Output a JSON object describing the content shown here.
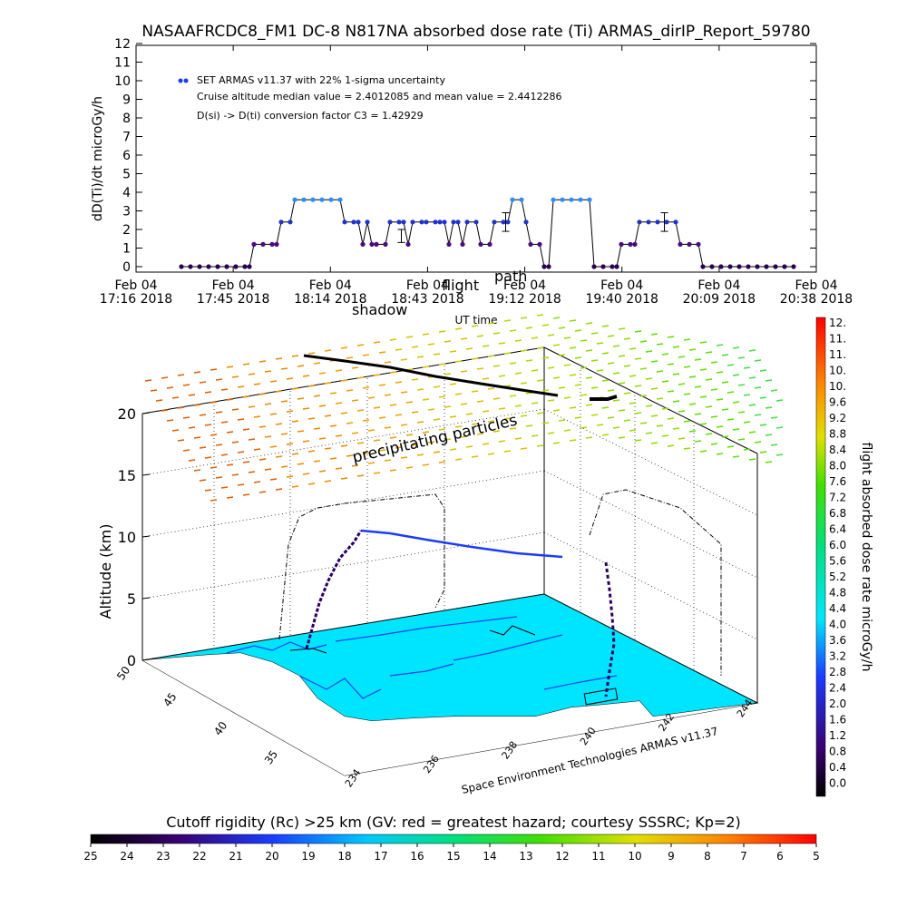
{
  "title": "NASAAFRCDC8_FM1 DC-8   N817NA absorbed dose rate (Ti) ARMAS_dirIP_Report_59780",
  "chart_data": [
    {
      "type": "scatter",
      "ylabel": "dD(Ti)/dt microGy/h",
      "xlabel": "UT time",
      "ylim": [
        0,
        12
      ],
      "yticks": [
        "0",
        "1",
        "2",
        "3",
        "4",
        "5",
        "6",
        "7",
        "8",
        "9",
        "10",
        "11",
        "12"
      ],
      "xticks": [
        {
          "line1": "Feb 04",
          "line2": "17:16  2018"
        },
        {
          "line1": "Feb 04",
          "line2": "17:45  2018"
        },
        {
          "line1": "Feb 04",
          "line2": "18:14  2018"
        },
        {
          "line1": "Feb 04",
          "line2": "18:43  2018"
        },
        {
          "line1": "Feb 04",
          "line2": "19:12  2018"
        },
        {
          "line1": "Feb 04",
          "line2": "19:40  2018"
        },
        {
          "line1": "Feb 04",
          "line2": "20:09  2018"
        },
        {
          "line1": "Feb 04",
          "line2": "20:38  2018"
        }
      ],
      "legend": {
        "entry": "SET ARMAS v11.37 with 22% 1-sigma uncertainty",
        "median_line": "Cruise altitude median value = 2.4012085 and mean value = 2.4412286",
        "conversion_line": "D(si) -> D(ti) conversion factor C3 = 1.42929"
      },
      "annotations": [
        "shadow",
        "flight",
        "path"
      ],
      "points": [
        [
          0.1,
          0
        ],
        [
          0.12,
          0
        ],
        [
          0.14,
          0
        ],
        [
          0.16,
          0
        ],
        [
          0.18,
          0
        ],
        [
          0.2,
          0
        ],
        [
          0.22,
          0
        ],
        [
          0.24,
          0
        ],
        [
          0.25,
          0
        ],
        [
          0.26,
          1.2
        ],
        [
          0.28,
          1.2
        ],
        [
          0.3,
          1.2
        ],
        [
          0.31,
          1.2
        ],
        [
          0.32,
          2.4
        ],
        [
          0.34,
          2.4
        ],
        [
          0.35,
          3.6
        ],
        [
          0.37,
          3.6
        ],
        [
          0.39,
          3.6
        ],
        [
          0.41,
          3.6
        ],
        [
          0.43,
          3.6
        ],
        [
          0.45,
          3.6
        ],
        [
          0.46,
          2.4
        ],
        [
          0.48,
          2.4
        ],
        [
          0.49,
          2.4
        ],
        [
          0.5,
          1.2
        ],
        [
          0.51,
          2.4
        ],
        [
          0.52,
          1.2
        ],
        [
          0.53,
          1.2
        ],
        [
          0.55,
          1.2
        ],
        [
          0.56,
          2.4
        ],
        [
          0.58,
          2.4
        ],
        [
          0.59,
          2.4
        ],
        [
          0.6,
          1.2
        ],
        [
          0.61,
          2.4
        ],
        [
          0.63,
          2.4
        ],
        [
          0.64,
          2.4
        ],
        [
          0.66,
          2.4
        ],
        [
          0.67,
          2.4
        ],
        [
          0.68,
          2.4
        ],
        [
          0.69,
          1.2
        ],
        [
          0.7,
          2.4
        ],
        [
          0.71,
          2.4
        ],
        [
          0.72,
          1.2
        ],
        [
          0.73,
          2.4
        ],
        [
          0.75,
          2.4
        ],
        [
          0.76,
          1.2
        ],
        [
          0.78,
          1.2
        ],
        [
          0.79,
          2.4
        ],
        [
          0.81,
          2.4
        ],
        [
          0.82,
          2.4
        ],
        [
          0.83,
          3.6
        ],
        [
          0.85,
          3.6
        ],
        [
          0.86,
          2.4
        ],
        [
          0.87,
          1.2
        ],
        [
          0.89,
          1.2
        ],
        [
          0.9,
          0
        ],
        [
          0.91,
          0
        ],
        [
          0.92,
          3.6
        ],
        [
          0.94,
          3.6
        ],
        [
          0.96,
          3.6
        ],
        [
          0.98,
          3.6
        ],
        [
          1.0,
          3.6
        ],
        [
          1.01,
          0
        ],
        [
          1.03,
          0
        ],
        [
          1.05,
          0
        ],
        [
          1.06,
          0
        ],
        [
          1.07,
          1.2
        ],
        [
          1.09,
          1.2
        ],
        [
          1.1,
          1.2
        ],
        [
          1.11,
          2.4
        ],
        [
          1.13,
          2.4
        ],
        [
          1.15,
          2.4
        ],
        [
          1.17,
          2.4
        ],
        [
          1.19,
          2.4
        ],
        [
          1.2,
          1.2
        ],
        [
          1.22,
          1.2
        ],
        [
          1.24,
          1.2
        ],
        [
          1.25,
          0
        ],
        [
          1.27,
          0
        ],
        [
          1.29,
          0
        ],
        [
          1.31,
          0
        ],
        [
          1.33,
          0
        ],
        [
          1.35,
          0
        ],
        [
          1.37,
          0
        ],
        [
          1.39,
          0
        ],
        [
          1.41,
          0
        ],
        [
          1.43,
          0
        ],
        [
          1.45,
          0
        ]
      ],
      "errorbars": [
        {
          "x": 0.585,
          "y": 1.7,
          "lo": 1.3,
          "hi": 2.0
        },
        {
          "x": 0.815,
          "y": 2.4,
          "lo": 1.9,
          "hi": 2.9
        },
        {
          "x": 1.165,
          "y": 2.4,
          "lo": 1.9,
          "hi": 2.9
        }
      ]
    },
    {
      "type": "3d-scatter",
      "zlabel": "Altitude (km)",
      "zticks": [
        "0",
        "5",
        "10",
        "15",
        "20"
      ],
      "lat_ticks": [
        "50",
        "45",
        "40",
        "35"
      ],
      "lon_ticks": [
        "234",
        "236",
        "238",
        "240",
        "242",
        "244"
      ],
      "annotation": "precipitating particles",
      "credit": "Space Environment Technologies ARMAS v11.37",
      "colorbar": {
        "label": "flight absorbed dose rate microGy/h",
        "ticks": [
          "12.",
          "11.",
          "11.",
          "10.",
          "10.",
          "9.6",
          "9.2",
          "8.8",
          "8.4",
          "8.0",
          "7.6",
          "7.2",
          "6.8",
          "6.4",
          "6.0",
          "5.6",
          "5.2",
          "4.8",
          "4.4",
          "4.0",
          "3.6",
          "3.2",
          "2.8",
          "2.4",
          "2.0",
          "1.6",
          "1.2",
          "0.8",
          "0.4",
          "0.0"
        ]
      },
      "ocean_color": "#00e5ff",
      "track_color": "#000000"
    },
    {
      "type": "colorbar",
      "title": "Cutoff rigidity (Rc) >25 km (GV: red = greatest hazard; courtesy SSSRC; Kp=2)",
      "ticks": [
        "25",
        "24",
        "23",
        "22",
        "21",
        "20",
        "19",
        "18",
        "17",
        "16",
        "15",
        "14",
        "13",
        "12",
        "11",
        "10",
        "9",
        "8",
        "7",
        "6",
        "5"
      ]
    }
  ]
}
